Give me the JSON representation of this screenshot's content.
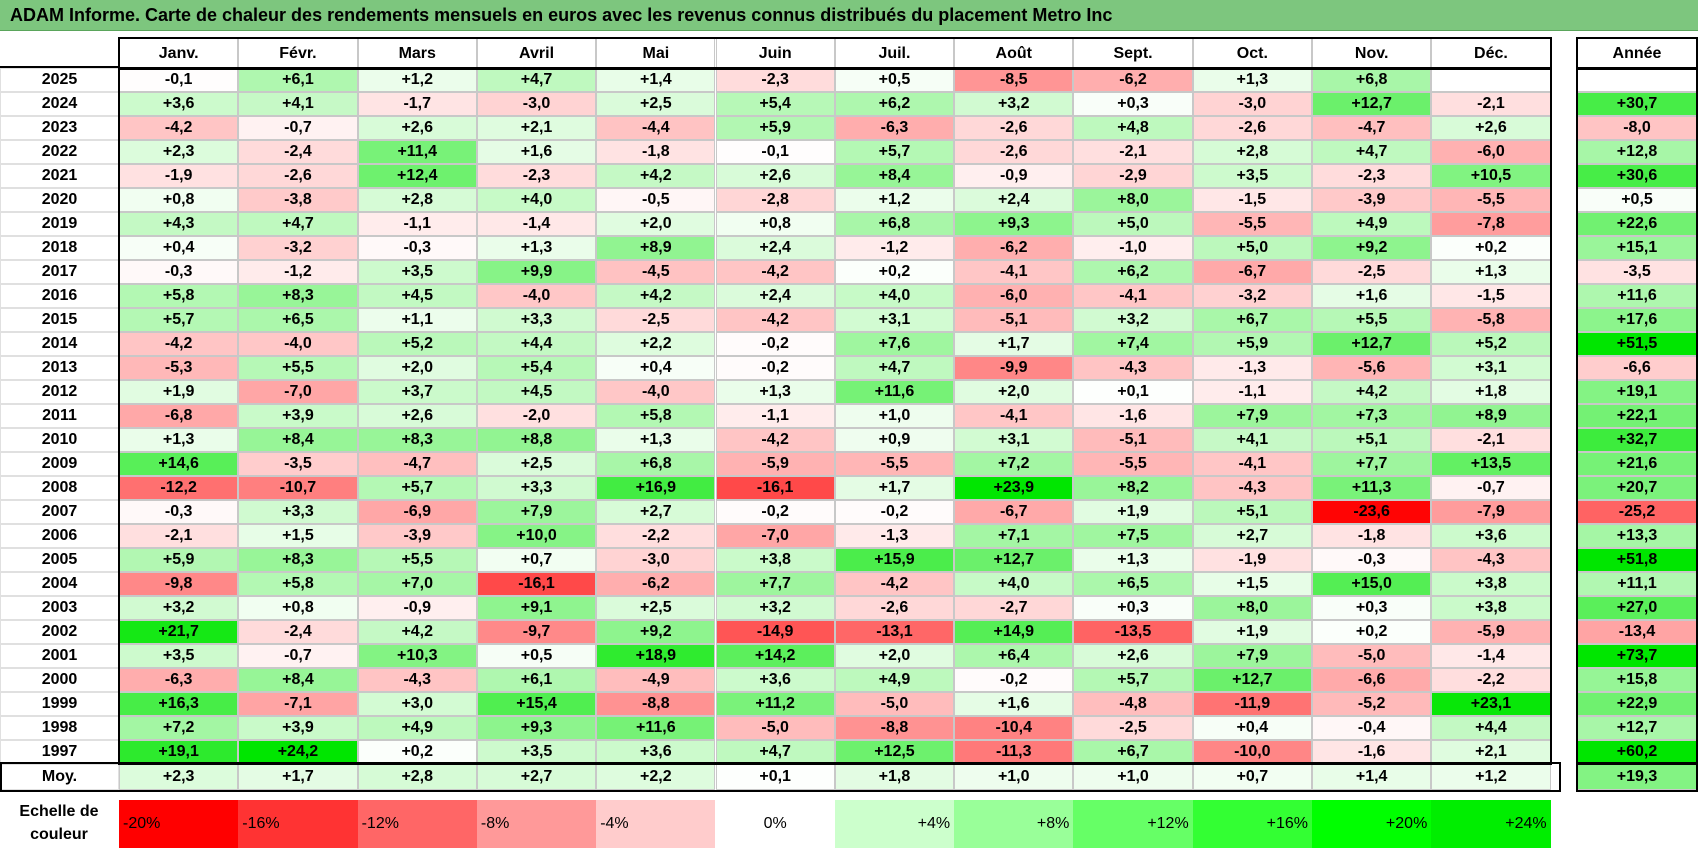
{
  "title": "ADAM Informe. Carte de chaleur des rendements mensuels en euros avec les revenus connus distribués du placement Metro Inc",
  "chart_data": {
    "type": "heatmap",
    "title": "ADAM Informe. Carte de chaleur des rendements mensuels en euros avec les revenus connus distribués du placement Metro Inc",
    "columns": [
      "Janv.",
      "Févr.",
      "Mars",
      "Avril",
      "Mai",
      "Juin",
      "Juil.",
      "Août",
      "Sept.",
      "Oct.",
      "Nov.",
      "Déc."
    ],
    "year_header": "Année",
    "rows": [
      {
        "year": "2025",
        "values": [
          "-0,1",
          "+6,1",
          "+1,2",
          "+4,7",
          "+1,4",
          "-2,3",
          "+0,5",
          "-8,5",
          "-6,2",
          "+1,3",
          "+6,8",
          ""
        ],
        "annual": ""
      },
      {
        "year": "2024",
        "values": [
          "+3,6",
          "+4,1",
          "-1,7",
          "-3,0",
          "+2,5",
          "+5,4",
          "+6,2",
          "+3,2",
          "+0,3",
          "-3,0",
          "+12,7",
          "-2,1"
        ],
        "annual": "+30,7"
      },
      {
        "year": "2023",
        "values": [
          "-4,2",
          "-0,7",
          "+2,6",
          "+2,1",
          "-4,4",
          "+5,9",
          "-6,3",
          "-2,6",
          "+4,8",
          "-2,6",
          "-4,7",
          "+2,6"
        ],
        "annual": "-8,0"
      },
      {
        "year": "2022",
        "values": [
          "+2,3",
          "-2,4",
          "+11,4",
          "+1,6",
          "-1,8",
          "-0,1",
          "+5,7",
          "-2,6",
          "-2,1",
          "+2,8",
          "+4,7",
          "-6,0"
        ],
        "annual": "+12,8"
      },
      {
        "year": "2021",
        "values": [
          "-1,9",
          "-2,6",
          "+12,4",
          "-2,3",
          "+4,2",
          "+2,6",
          "+8,4",
          "-0,9",
          "-2,9",
          "+3,5",
          "-2,3",
          "+10,5"
        ],
        "annual": "+30,6"
      },
      {
        "year": "2020",
        "values": [
          "+0,8",
          "-3,8",
          "+2,8",
          "+4,0",
          "-0,5",
          "-2,8",
          "+1,2",
          "+2,4",
          "+8,0",
          "-1,5",
          "-3,9",
          "-5,5"
        ],
        "annual": "+0,5"
      },
      {
        "year": "2019",
        "values": [
          "+4,3",
          "+4,7",
          "-1,1",
          "-1,4",
          "+2,0",
          "+0,8",
          "+6,8",
          "+9,3",
          "+5,0",
          "-5,5",
          "+4,9",
          "-7,8"
        ],
        "annual": "+22,6"
      },
      {
        "year": "2018",
        "values": [
          "+0,4",
          "-3,2",
          "-0,3",
          "+1,3",
          "+8,9",
          "+2,4",
          "-1,2",
          "-6,2",
          "-1,0",
          "+5,0",
          "+9,2",
          "+0,2"
        ],
        "annual": "+15,1"
      },
      {
        "year": "2017",
        "values": [
          "-0,3",
          "-1,2",
          "+3,5",
          "+9,9",
          "-4,5",
          "-4,2",
          "+0,2",
          "-4,1",
          "+6,2",
          "-6,7",
          "-2,5",
          "+1,3"
        ],
        "annual": "-3,5"
      },
      {
        "year": "2016",
        "values": [
          "+5,8",
          "+8,3",
          "+4,5",
          "-4,0",
          "+4,2",
          "+2,4",
          "+4,0",
          "-6,0",
          "-4,1",
          "-3,2",
          "+1,6",
          "-1,5"
        ],
        "annual": "+11,6"
      },
      {
        "year": "2015",
        "values": [
          "+5,7",
          "+6,5",
          "+1,1",
          "+3,3",
          "-2,5",
          "-4,2",
          "+3,1",
          "-5,1",
          "+3,2",
          "+6,7",
          "+5,5",
          "-5,8"
        ],
        "annual": "+17,6"
      },
      {
        "year": "2014",
        "values": [
          "-4,2",
          "-4,0",
          "+5,2",
          "+4,4",
          "+2,2",
          "-0,2",
          "+7,6",
          "+1,7",
          "+7,4",
          "+5,9",
          "+12,7",
          "+5,2"
        ],
        "annual": "+51,5"
      },
      {
        "year": "2013",
        "values": [
          "-5,3",
          "+5,5",
          "+2,0",
          "+5,4",
          "+0,4",
          "-0,2",
          "+4,7",
          "-9,9",
          "-4,3",
          "-1,3",
          "-5,6",
          "+3,1"
        ],
        "annual": "-6,6"
      },
      {
        "year": "2012",
        "values": [
          "+1,9",
          "-7,0",
          "+3,7",
          "+4,5",
          "-4,0",
          "+1,3",
          "+11,6",
          "+2,0",
          "+0,1",
          "-1,1",
          "+4,2",
          "+1,8"
        ],
        "annual": "+19,1"
      },
      {
        "year": "2011",
        "values": [
          "-6,8",
          "+3,9",
          "+2,6",
          "-2,0",
          "+5,8",
          "-1,1",
          "+1,0",
          "-4,1",
          "-1,6",
          "+7,9",
          "+7,3",
          "+8,9"
        ],
        "annual": "+22,1"
      },
      {
        "year": "2010",
        "values": [
          "+1,3",
          "+8,4",
          "+8,3",
          "+8,8",
          "+1,3",
          "-4,2",
          "+0,9",
          "+3,1",
          "-5,1",
          "+4,1",
          "+5,1",
          "-2,1"
        ],
        "annual": "+32,7"
      },
      {
        "year": "2009",
        "values": [
          "+14,6",
          "-3,5",
          "-4,7",
          "+2,5",
          "+6,8",
          "-5,9",
          "-5,5",
          "+7,2",
          "-5,5",
          "-4,1",
          "+7,7",
          "+13,5"
        ],
        "annual": "+21,6"
      },
      {
        "year": "2008",
        "values": [
          "-12,2",
          "-10,7",
          "+5,7",
          "+3,3",
          "+16,9",
          "-16,1",
          "+1,7",
          "+23,9",
          "+8,2",
          "-4,3",
          "+11,3",
          "-0,7"
        ],
        "annual": "+20,7"
      },
      {
        "year": "2007",
        "values": [
          "-0,3",
          "+3,3",
          "-6,9",
          "+7,9",
          "+2,7",
          "-0,2",
          "-0,2",
          "-6,7",
          "+1,9",
          "+5,1",
          "-23,6",
          "-7,9"
        ],
        "annual": "-25,2"
      },
      {
        "year": "2006",
        "values": [
          "-2,1",
          "+1,5",
          "-3,9",
          "+10,0",
          "-2,2",
          "-7,0",
          "-1,3",
          "+7,1",
          "+7,5",
          "+2,7",
          "-1,8",
          "+3,6"
        ],
        "annual": "+13,3"
      },
      {
        "year": "2005",
        "values": [
          "+5,9",
          "+8,3",
          "+5,5",
          "+0,7",
          "-3,0",
          "+3,8",
          "+15,9",
          "+12,7",
          "+1,3",
          "-1,9",
          "-0,3",
          "-4,3"
        ],
        "annual": "+51,8"
      },
      {
        "year": "2004",
        "values": [
          "-9,8",
          "+5,8",
          "+7,0",
          "-16,1",
          "-6,2",
          "+7,7",
          "-4,2",
          "+4,0",
          "+6,5",
          "+1,5",
          "+15,0",
          "+3,8"
        ],
        "annual": "+11,1"
      },
      {
        "year": "2003",
        "values": [
          "+3,2",
          "+0,8",
          "-0,9",
          "+9,1",
          "+2,5",
          "+3,2",
          "-2,6",
          "-2,7",
          "+0,3",
          "+8,0",
          "+0,3",
          "+3,8"
        ],
        "annual": "+27,0"
      },
      {
        "year": "2002",
        "values": [
          "+21,7",
          "-2,4",
          "+4,2",
          "-9,7",
          "+9,2",
          "-14,9",
          "-13,1",
          "+14,9",
          "-13,5",
          "+1,9",
          "+0,2",
          "-5,9"
        ],
        "annual": "-13,4"
      },
      {
        "year": "2001",
        "values": [
          "+3,5",
          "-0,7",
          "+10,3",
          "+0,5",
          "+18,9",
          "+14,2",
          "+2,0",
          "+6,4",
          "+2,6",
          "+7,9",
          "-5,0",
          "-1,4"
        ],
        "annual": "+73,7"
      },
      {
        "year": "2000",
        "values": [
          "-6,3",
          "+8,4",
          "-4,3",
          "+6,1",
          "-4,9",
          "+3,6",
          "+4,9",
          "-0,2",
          "+5,7",
          "+12,7",
          "-6,6",
          "-2,2"
        ],
        "annual": "+15,8"
      },
      {
        "year": "1999",
        "values": [
          "+16,3",
          "-7,1",
          "+3,0",
          "+15,4",
          "-8,8",
          "+11,2",
          "-5,0",
          "+1,6",
          "-4,8",
          "-11,9",
          "-5,2",
          "+23,1"
        ],
        "annual": "+22,9"
      },
      {
        "year": "1998",
        "values": [
          "+7,2",
          "+3,9",
          "+4,9",
          "+9,3",
          "+11,6",
          "-5,0",
          "-8,8",
          "-10,4",
          "-2,5",
          "+0,4",
          "-0,4",
          "+4,4"
        ],
        "annual": "+12,7"
      },
      {
        "year": "1997",
        "values": [
          "+19,1",
          "+24,2",
          "+0,2",
          "+3,5",
          "+3,6",
          "+4,7",
          "+12,5",
          "-11,3",
          "+6,7",
          "-10,0",
          "-1,6",
          "+2,1"
        ],
        "annual": "+60,2"
      }
    ],
    "average": {
      "label": "Moy.",
      "values": [
        "+2,3",
        "+1,7",
        "+2,8",
        "+2,7",
        "+2,2",
        "+0,1",
        "+1,8",
        "+1,0",
        "+1,0",
        "+0,7",
        "+1,4",
        "+1,2"
      ],
      "annual": "+19,3"
    },
    "color_scale": {
      "label": "Echelle de couleur",
      "stops": [
        "-20%",
        "-16%",
        "-12%",
        "-8%",
        "-4%",
        "0%",
        "+4%",
        "+8%",
        "+12%",
        "+16%",
        "+20%",
        "+24%"
      ],
      "colors": [
        "#ff0000",
        "#ff3333",
        "#ff6666",
        "#ff9999",
        "#ffcccc",
        "#ffffff",
        "#ccffcc",
        "#99ff99",
        "#66ff66",
        "#33ff33",
        "#00ff00",
        "#00ee00"
      ]
    }
  }
}
